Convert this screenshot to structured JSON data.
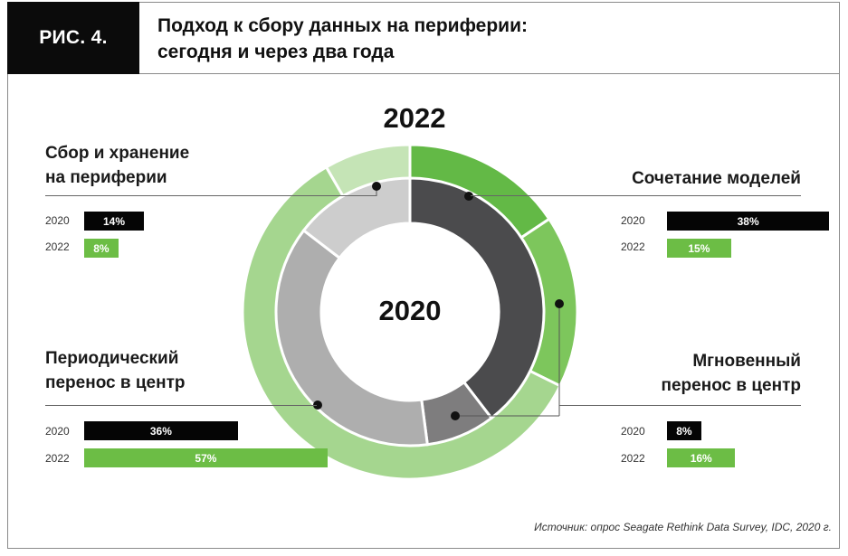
{
  "header": {
    "fig_label": "РИС. 4.",
    "title_line1": "Подход к сбору данных на периферии:",
    "title_line2": "сегодня и через два года"
  },
  "chart_data": {
    "type": "pie",
    "subtype": "nested-donut",
    "outer_ring_label": "2022",
    "inner_ring_label": "2020",
    "categories": [
      "Сочетание моделей",
      "Мгновенный перенос в центр",
      "Периодический перенос в центр",
      "Сбор и хранение на периферии"
    ],
    "series": [
      {
        "name": "2020",
        "values": [
          38,
          8,
          36,
          14
        ],
        "value_labels": [
          "38%",
          "8%",
          "36%",
          "14%"
        ]
      },
      {
        "name": "2022",
        "values": [
          15,
          16,
          57,
          8
        ],
        "value_labels": [
          "15%",
          "16%",
          "57%",
          "8%"
        ]
      }
    ],
    "colors": {
      "inner": [
        "#4b4b4d",
        "#7e7d7e",
        "#aeaeae",
        "#cdcdcd"
      ],
      "outer": [
        "#63b946",
        "#7dc65c",
        "#a5d68f",
        "#c5e4b6"
      ],
      "bar_2020": "#050505",
      "bar_2022": "#6cbd45"
    },
    "bar_scale_max": 60
  },
  "labels": {
    "mixed_title": "Сочетание моделей",
    "instant_line1": "Мгновенный",
    "instant_line2": "перенос в центр",
    "periodic_line1": "Периодический",
    "periodic_line2": "перенос в центр",
    "edge_line1": "Сбор и хранение",
    "edge_line2": "на периферии",
    "year_2020": "2020",
    "year_2022": "2022"
  },
  "source": "Источник: опрос Seagate Rethink Data Survey, IDC, 2020 г."
}
